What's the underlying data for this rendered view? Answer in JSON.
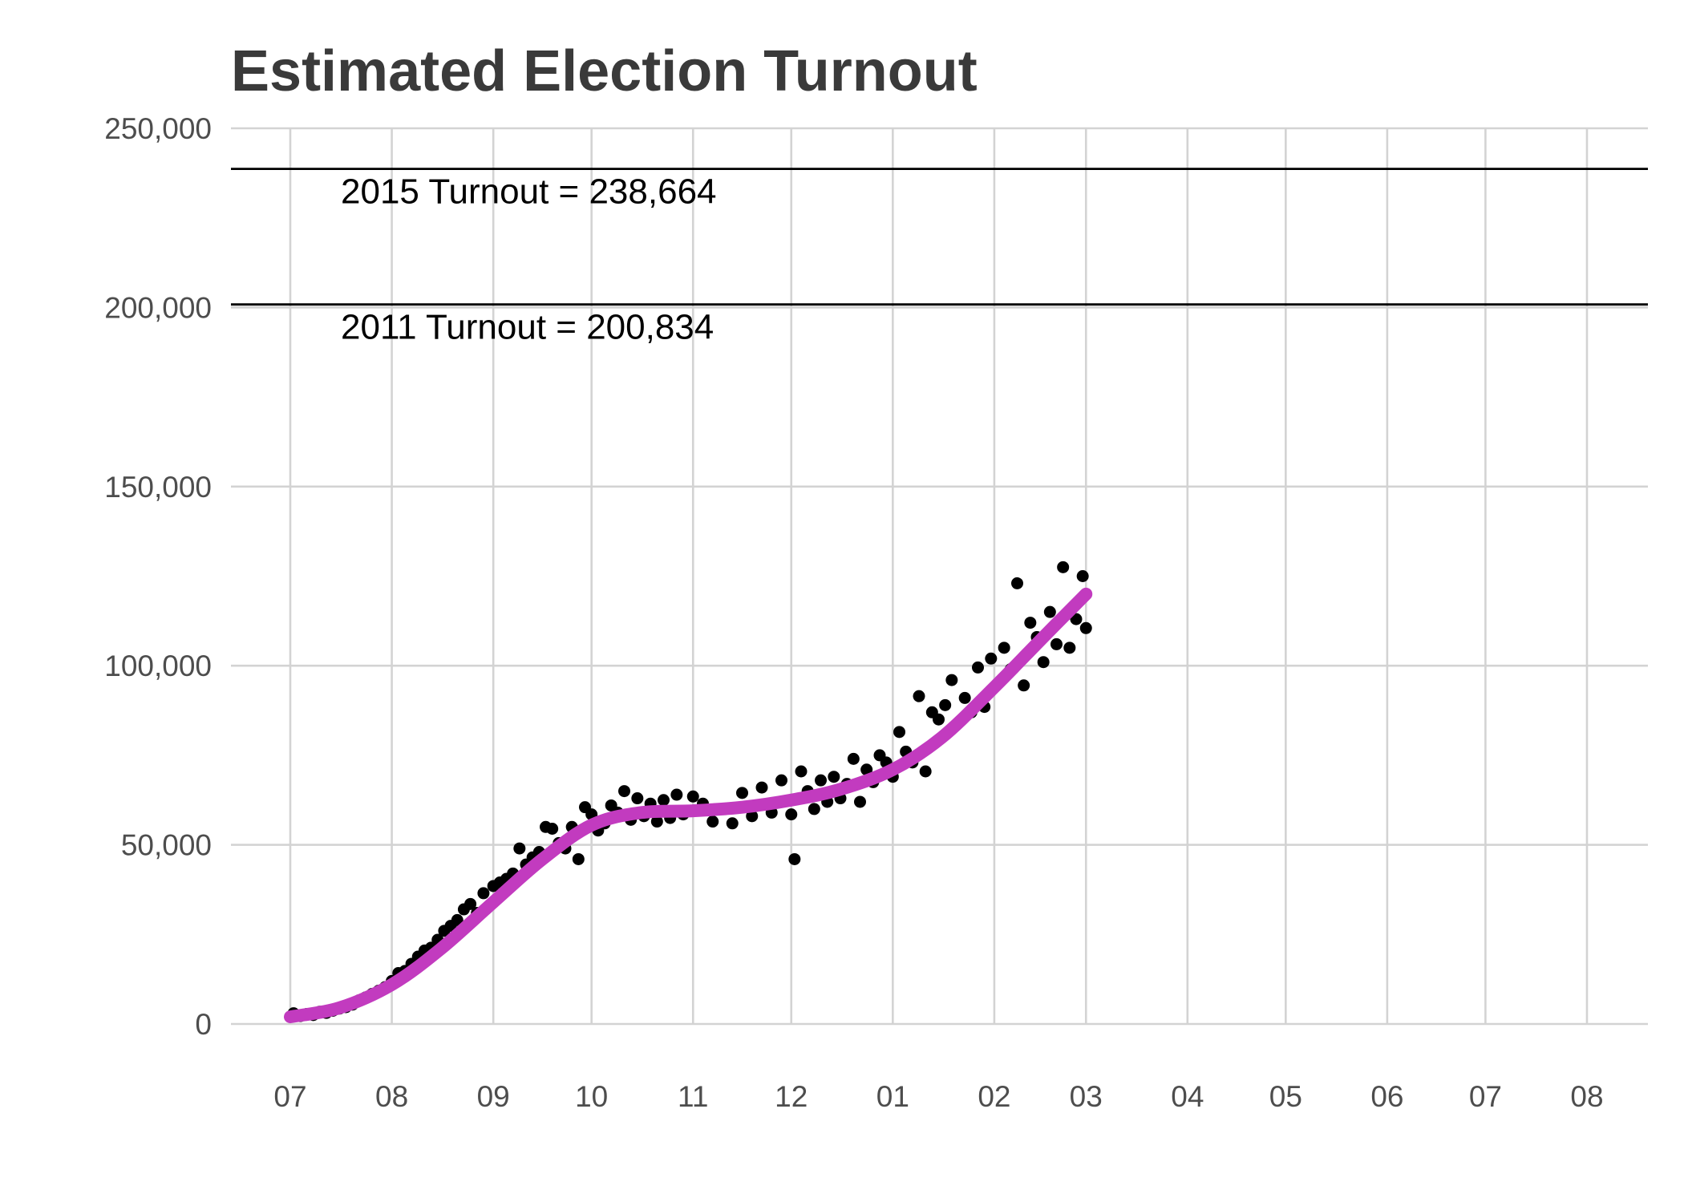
{
  "chart_data": {
    "type": "scatter",
    "title": "Estimated Election Turnout",
    "xlabel": "",
    "ylabel": "",
    "grid": true,
    "legend": "none",
    "x_axis": {
      "type": "date",
      "range": [
        "2014-07-01",
        "2015-08-01"
      ],
      "ticks": [
        {
          "date": "2014-07-01",
          "label": "07"
        },
        {
          "date": "2014-08-01",
          "label": "08"
        },
        {
          "date": "2014-09-01",
          "label": "09"
        },
        {
          "date": "2014-10-01",
          "label": "10"
        },
        {
          "date": "2014-11-01",
          "label": "11"
        },
        {
          "date": "2014-12-01",
          "label": "12"
        },
        {
          "date": "2015-01-01",
          "label": "01"
        },
        {
          "date": "2015-02-01",
          "label": "02"
        },
        {
          "date": "2015-03-01",
          "label": "03"
        },
        {
          "date": "2015-04-01",
          "label": "04"
        },
        {
          "date": "2015-05-01",
          "label": "05"
        },
        {
          "date": "2015-06-01",
          "label": "06"
        },
        {
          "date": "2015-07-01",
          "label": "07"
        },
        {
          "date": "2015-08-01",
          "label": "08"
        }
      ]
    },
    "y_axis": {
      "range": [
        0,
        250000
      ],
      "ticks": [
        {
          "value": 0,
          "label": "0"
        },
        {
          "value": 50000,
          "label": "50,000"
        },
        {
          "value": 100000,
          "label": "100,000"
        },
        {
          "value": 150000,
          "label": "150,000"
        },
        {
          "value": 200000,
          "label": "200,000"
        },
        {
          "value": 250000,
          "label": "250,000"
        }
      ]
    },
    "reference_lines": [
      {
        "value": 238664,
        "label": "2015 Turnout = 238,664"
      },
      {
        "value": 200834,
        "label": "2011 Turnout = 200,834"
      }
    ],
    "series": [
      {
        "kind": "points",
        "color": "#000000",
        "points": [
          [
            "2014-07-02",
            3000
          ],
          [
            "2014-07-04",
            2200
          ],
          [
            "2014-07-06",
            2800
          ],
          [
            "2014-07-08",
            2500
          ],
          [
            "2014-07-10",
            3400
          ],
          [
            "2014-07-12",
            3100
          ],
          [
            "2014-07-14",
            3700
          ],
          [
            "2014-07-16",
            4300
          ],
          [
            "2014-07-18",
            4700
          ],
          [
            "2014-07-20",
            5400
          ],
          [
            "2014-07-22",
            6600
          ],
          [
            "2014-07-24",
            7400
          ],
          [
            "2014-07-26",
            8400
          ],
          [
            "2014-07-28",
            9300
          ],
          [
            "2014-07-30",
            10300
          ],
          [
            "2014-08-01",
            12000
          ],
          [
            "2014-08-03",
            14200
          ],
          [
            "2014-08-05",
            14800
          ],
          [
            "2014-08-07",
            16800
          ],
          [
            "2014-08-09",
            18800
          ],
          [
            "2014-08-11",
            20500
          ],
          [
            "2014-08-13",
            21300
          ],
          [
            "2014-08-15",
            23500
          ],
          [
            "2014-08-17",
            26000
          ],
          [
            "2014-08-19",
            27400
          ],
          [
            "2014-08-21",
            29000
          ],
          [
            "2014-08-23",
            32000
          ],
          [
            "2014-08-25",
            33500
          ],
          [
            "2014-08-27",
            31000
          ],
          [
            "2014-08-29",
            36500
          ],
          [
            "2014-09-01",
            38500
          ],
          [
            "2014-09-03",
            39500
          ],
          [
            "2014-09-05",
            40500
          ],
          [
            "2014-09-07",
            42000
          ],
          [
            "2014-09-09",
            49000
          ],
          [
            "2014-09-11",
            44500
          ],
          [
            "2014-09-13",
            46500
          ],
          [
            "2014-09-15",
            48000
          ],
          [
            "2014-09-17",
            55000
          ],
          [
            "2014-09-19",
            54500
          ],
          [
            "2014-09-21",
            50500
          ],
          [
            "2014-09-23",
            49000
          ],
          [
            "2014-09-25",
            55000
          ],
          [
            "2014-09-27",
            46000
          ],
          [
            "2014-09-29",
            60500
          ],
          [
            "2014-10-01",
            58500
          ],
          [
            "2014-10-03",
            54000
          ],
          [
            "2014-10-05",
            56000
          ],
          [
            "2014-10-07",
            61000
          ],
          [
            "2014-10-09",
            59000
          ],
          [
            "2014-10-11",
            65000
          ],
          [
            "2014-10-13",
            57000
          ],
          [
            "2014-10-15",
            63000
          ],
          [
            "2014-10-17",
            58000
          ],
          [
            "2014-10-19",
            61500
          ],
          [
            "2014-10-21",
            56500
          ],
          [
            "2014-10-23",
            62500
          ],
          [
            "2014-10-25",
            57500
          ],
          [
            "2014-10-27",
            64000
          ],
          [
            "2014-10-29",
            58500
          ],
          [
            "2014-11-01",
            63500
          ],
          [
            "2014-11-04",
            61500
          ],
          [
            "2014-11-07",
            56500
          ],
          [
            "2014-11-10",
            60000
          ],
          [
            "2014-11-13",
            56000
          ],
          [
            "2014-11-16",
            64500
          ],
          [
            "2014-11-19",
            58000
          ],
          [
            "2014-11-22",
            66000
          ],
          [
            "2014-11-25",
            59000
          ],
          [
            "2014-11-28",
            68000
          ],
          [
            "2014-12-01",
            58500
          ],
          [
            "2014-12-02",
            46000
          ],
          [
            "2014-12-04",
            70500
          ],
          [
            "2014-12-06",
            65000
          ],
          [
            "2014-12-08",
            60000
          ],
          [
            "2014-12-10",
            68000
          ],
          [
            "2014-12-12",
            62000
          ],
          [
            "2014-12-14",
            69000
          ],
          [
            "2014-12-16",
            63000
          ],
          [
            "2014-12-18",
            67000
          ],
          [
            "2014-12-20",
            74000
          ],
          [
            "2014-12-22",
            62000
          ],
          [
            "2014-12-24",
            71000
          ],
          [
            "2014-12-26",
            67500
          ],
          [
            "2014-12-28",
            75000
          ],
          [
            "2014-12-30",
            73000
          ],
          [
            "2015-01-01",
            69000
          ],
          [
            "2015-01-03",
            81500
          ],
          [
            "2015-01-05",
            76000
          ],
          [
            "2015-01-07",
            73000
          ],
          [
            "2015-01-09",
            91500
          ],
          [
            "2015-01-11",
            70500
          ],
          [
            "2015-01-13",
            87000
          ],
          [
            "2015-01-15",
            85000
          ],
          [
            "2015-01-17",
            89000
          ],
          [
            "2015-01-19",
            96000
          ],
          [
            "2015-01-21",
            84000
          ],
          [
            "2015-01-23",
            91000
          ],
          [
            "2015-01-25",
            87000
          ],
          [
            "2015-01-27",
            99500
          ],
          [
            "2015-01-29",
            88500
          ],
          [
            "2015-01-31",
            102000
          ],
          [
            "2015-02-02",
            95000
          ],
          [
            "2015-02-04",
            105000
          ],
          [
            "2015-02-06",
            99000
          ],
          [
            "2015-02-08",
            123000
          ],
          [
            "2015-02-10",
            94500
          ],
          [
            "2015-02-12",
            112000
          ],
          [
            "2015-02-14",
            108000
          ],
          [
            "2015-02-16",
            101000
          ],
          [
            "2015-02-18",
            115000
          ],
          [
            "2015-02-20",
            106000
          ],
          [
            "2015-02-22",
            127500
          ],
          [
            "2015-02-24",
            105000
          ],
          [
            "2015-02-26",
            113000
          ],
          [
            "2015-02-28",
            125000
          ],
          [
            "2015-03-01",
            110500
          ]
        ]
      },
      {
        "kind": "smooth",
        "color": "#c23bbf",
        "points": [
          [
            "2014-07-01",
            2000
          ],
          [
            "2014-07-16",
            4500
          ],
          [
            "2014-08-01",
            11000
          ],
          [
            "2014-08-16",
            21000
          ],
          [
            "2014-09-01",
            34000
          ],
          [
            "2014-09-16",
            46000
          ],
          [
            "2014-10-01",
            55500
          ],
          [
            "2014-10-16",
            59000
          ],
          [
            "2014-11-01",
            59500
          ],
          [
            "2014-11-16",
            60500
          ],
          [
            "2014-12-01",
            62500
          ],
          [
            "2014-12-16",
            65500
          ],
          [
            "2015-01-01",
            71000
          ],
          [
            "2015-01-16",
            80000
          ],
          [
            "2015-02-01",
            94000
          ],
          [
            "2015-02-16",
            108000
          ],
          [
            "2015-03-01",
            120000
          ]
        ]
      }
    ]
  }
}
